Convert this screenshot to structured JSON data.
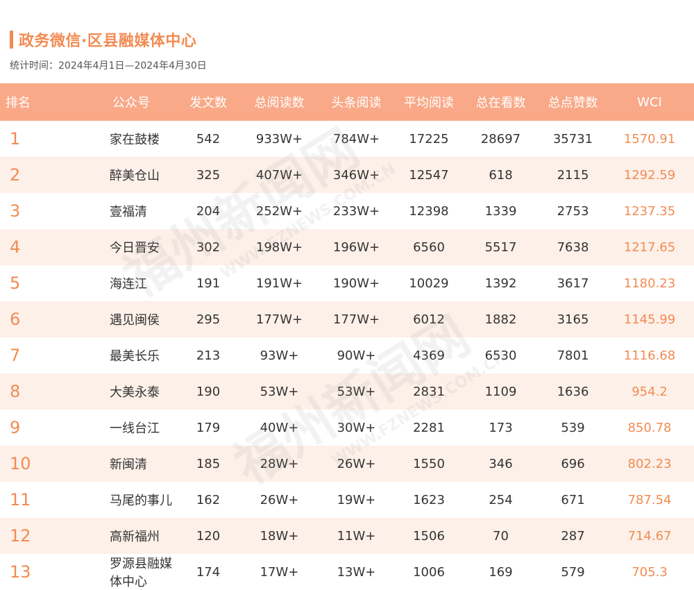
{
  "header": {
    "title": "政务微信·区县融媒体中心",
    "subtitle": "统计时间：2024年4月1日—2024年4月30日"
  },
  "table": {
    "columns": [
      "排名",
      "公众号",
      "发文数",
      "总阅读数",
      "头条阅读",
      "平均阅读",
      "总在看数",
      "总点赞数",
      "WCI"
    ],
    "rows": [
      {
        "rank": "1",
        "name": "家在鼓楼",
        "posts": "542",
        "total_reads": "933W+",
        "headline_reads": "784W+",
        "avg_reads": "17225",
        "watching": "28697",
        "likes": "35731",
        "wci": "1570.91"
      },
      {
        "rank": "2",
        "name": "醉美仓山",
        "posts": "325",
        "total_reads": "407W+",
        "headline_reads": "346W+",
        "avg_reads": "12547",
        "watching": "618",
        "likes": "2115",
        "wci": "1292.59"
      },
      {
        "rank": "3",
        "name": "壹福清",
        "posts": "204",
        "total_reads": "252W+",
        "headline_reads": "233W+",
        "avg_reads": "12398",
        "watching": "1339",
        "likes": "2753",
        "wci": "1237.35"
      },
      {
        "rank": "4",
        "name": "今日晋安",
        "posts": "302",
        "total_reads": "198W+",
        "headline_reads": "196W+",
        "avg_reads": "6560",
        "watching": "5517",
        "likes": "7638",
        "wci": "1217.65"
      },
      {
        "rank": "5",
        "name": "海连江",
        "posts": "191",
        "total_reads": "191W+",
        "headline_reads": "190W+",
        "avg_reads": "10029",
        "watching": "1392",
        "likes": "3617",
        "wci": "1180.23"
      },
      {
        "rank": "6",
        "name": "遇见闽侯",
        "posts": "295",
        "total_reads": "177W+",
        "headline_reads": "177W+",
        "avg_reads": "6012",
        "watching": "1882",
        "likes": "3165",
        "wci": "1145.99"
      },
      {
        "rank": "7",
        "name": "最美长乐",
        "posts": "213",
        "total_reads": "93W+",
        "headline_reads": "90W+",
        "avg_reads": "4369",
        "watching": "6530",
        "likes": "7801",
        "wci": "1116.68"
      },
      {
        "rank": "8",
        "name": "大美永泰",
        "posts": "190",
        "total_reads": "53W+",
        "headline_reads": "53W+",
        "avg_reads": "2831",
        "watching": "1109",
        "likes": "1636",
        "wci": "954.2"
      },
      {
        "rank": "9",
        "name": "一线台江",
        "posts": "179",
        "total_reads": "40W+",
        "headline_reads": "30W+",
        "avg_reads": "2281",
        "watching": "173",
        "likes": "539",
        "wci": "850.78"
      },
      {
        "rank": "10",
        "name": "新闽清",
        "posts": "185",
        "total_reads": "28W+",
        "headline_reads": "26W+",
        "avg_reads": "1550",
        "watching": "346",
        "likes": "696",
        "wci": "802.23"
      },
      {
        "rank": "11",
        "name": "马尾的事儿",
        "posts": "162",
        "total_reads": "26W+",
        "headline_reads": "19W+",
        "avg_reads": "1623",
        "watching": "254",
        "likes": "671",
        "wci": "787.54"
      },
      {
        "rank": "12",
        "name": "高新福州",
        "posts": "120",
        "total_reads": "18W+",
        "headline_reads": "11W+",
        "avg_reads": "1506",
        "watching": "70",
        "likes": "287",
        "wci": "714.67"
      },
      {
        "rank": "13",
        "name": "罗源县融媒体中心",
        "posts": "174",
        "total_reads": "17W+",
        "headline_reads": "13W+",
        "avg_reads": "1006",
        "watching": "169",
        "likes": "579",
        "wci": "705.3"
      }
    ]
  },
  "watermark": {
    "text_cn": "福州新闻网",
    "text_en": "WWW.FZNEWS.COM.CN"
  },
  "colors": {
    "accent": "#F28B52",
    "header_bg": "#F9A988",
    "stripe_bg": "#FDF0E9"
  }
}
